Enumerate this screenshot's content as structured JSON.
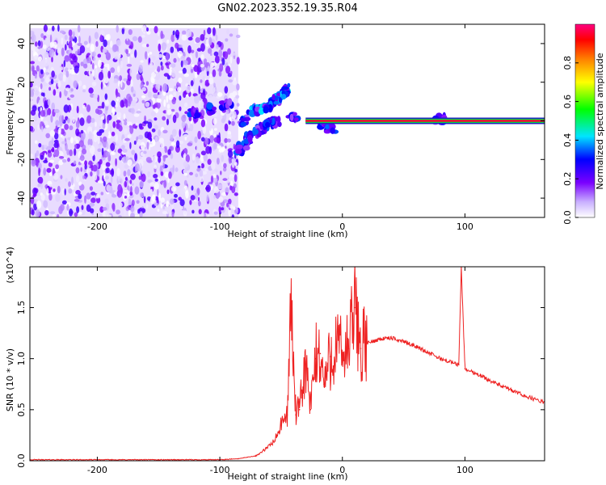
{
  "figure": {
    "title": "GN02.2023.352.19.35.R04"
  },
  "chart_data": [
    {
      "type": "heatmap",
      "title": "GN02.2023.352.19.35.R04",
      "xlabel": "Height of straight line (km)",
      "ylabel": "Frequency (Hz)",
      "xlim": [
        -255,
        165
      ],
      "ylim": [
        -50,
        50
      ],
      "x_ticks": [
        -200,
        -100,
        0,
        100
      ],
      "y_ticks": [
        -40,
        -20,
        0,
        20,
        40
      ],
      "x_tick_labels": [
        "-200",
        "-100",
        "0",
        "100"
      ],
      "y_tick_labels": [
        "-40",
        "-20",
        "0",
        "20",
        "40"
      ],
      "colorbar": {
        "label": "Normalized spectral amplitude",
        "range": [
          0,
          1
        ],
        "ticks": [
          0.0,
          0.2,
          0.4,
          0.6,
          0.8
        ],
        "tick_labels": [
          "0.0",
          "0.2",
          "0.4",
          "0.6",
          "0.8"
        ],
        "colors": [
          "#ffffff",
          "#7a00ff",
          "#0000ff",
          "#00e5ff",
          "#00ff00",
          "#ffff00",
          "#ff8000",
          "#ff0000",
          "#ff0080"
        ]
      },
      "features": [
        {
          "name": "noise_region",
          "x_range": [
            -255,
            -85
          ],
          "y_range": [
            -50,
            48
          ],
          "amplitude": 0.05
        },
        {
          "name": "chirp_upper",
          "points": [
            [
              -75,
              5
            ],
            [
              -60,
              7
            ],
            [
              -50,
              13
            ],
            [
              -45,
              17
            ]
          ],
          "amplitude": 0.35
        },
        {
          "name": "chirp_lower",
          "points": [
            [
              -85,
              -16
            ],
            [
              -75,
              -8
            ],
            [
              -62,
              -2
            ],
            [
              -52,
              0
            ]
          ],
          "amplitude": 0.3
        },
        {
          "name": "blobs",
          "points": [
            [
              -120,
              4
            ],
            [
              -108,
              6
            ],
            [
              -95,
              8
            ],
            [
              -80,
              0
            ],
            [
              -40,
              2
            ],
            [
              -15,
              -2
            ],
            [
              -10,
              -4
            ],
            [
              80,
              1
            ]
          ],
          "amplitude": 0.3
        },
        {
          "name": "carrier_line",
          "x_range": [
            -30,
            165
          ],
          "y": 0,
          "amplitude": 0.95
        }
      ]
    },
    {
      "type": "line",
      "xlabel": "Height of straight line (km)",
      "ylabel": "SNR (10 * v/v)",
      "y_multiplier": "(x10^4)",
      "xlim": [
        -255,
        165
      ],
      "ylim": [
        0,
        1.9
      ],
      "x_ticks": [
        -200,
        -100,
        0,
        100
      ],
      "y_ticks": [
        0.0,
        0.5,
        1.0,
        1.5
      ],
      "x_tick_labels": [
        "-200",
        "-100",
        "0",
        "100"
      ],
      "y_tick_labels": [
        "0.0",
        "0.5",
        "1.0",
        "1.5"
      ],
      "series": [
        {
          "color": "#ee2222",
          "x": [
            -255,
            -150,
            -100,
            -85,
            -70,
            -62,
            -55,
            -50,
            -45,
            -42,
            -38,
            -35,
            -30,
            -26,
            -22,
            -18,
            -15,
            -10,
            -5,
            0,
            5,
            10,
            15,
            20,
            25,
            30,
            35,
            40,
            50,
            60,
            70,
            80,
            90,
            95,
            97,
            100,
            110,
            120,
            130,
            140,
            150,
            165
          ],
          "y": [
            0.01,
            0.01,
            0.01,
            0.02,
            0.05,
            0.12,
            0.2,
            0.35,
            0.45,
            1.55,
            0.45,
            0.5,
            0.95,
            0.5,
            1.0,
            1.05,
            0.75,
            1.02,
            1.12,
            1.05,
            1.1,
            1.5,
            1.1,
            1.15,
            1.17,
            1.19,
            1.2,
            1.2,
            1.17,
            1.12,
            1.06,
            1.0,
            0.96,
            0.94,
            1.9,
            0.9,
            0.85,
            0.79,
            0.73,
            0.68,
            0.63,
            0.57
          ]
        }
      ]
    }
  ]
}
